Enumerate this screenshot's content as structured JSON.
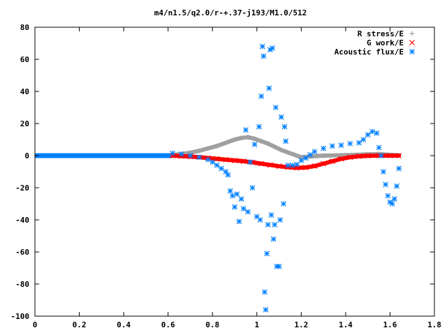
{
  "chart_data": {
    "type": "scatter",
    "title": "m4/n1.5/q2.0/r-+.37-j193/M1.0/512",
    "xlabel": "",
    "ylabel": "",
    "xlim": [
      0,
      1.8
    ],
    "ylim": [
      -100,
      80
    ],
    "x_ticks": [
      "0",
      "0.2",
      "0.4",
      "0.6",
      "0.8",
      "1",
      "1.2",
      "1.4",
      "1.6",
      "1.8"
    ],
    "y_ticks": [
      "80",
      "60",
      "40",
      "20",
      "0",
      "-20",
      "-40",
      "-60",
      "-80",
      "-100"
    ],
    "x_tick_values": [
      0,
      0.2,
      0.4,
      0.6,
      0.8,
      1.0,
      1.2,
      1.4,
      1.6,
      1.8
    ],
    "y_tick_values": [
      80,
      60,
      40,
      20,
      0,
      -20,
      -40,
      -60,
      -80,
      -100
    ],
    "grid": false,
    "legend_position": "top-right",
    "series": [
      {
        "name": "R stress/E",
        "marker": "plus",
        "color": "#a0a0a0",
        "points": [
          [
            0.62,
            0.5
          ],
          [
            0.66,
            1.0
          ],
          [
            0.7,
            1.8
          ],
          [
            0.74,
            3.0
          ],
          [
            0.78,
            4.5
          ],
          [
            0.82,
            6.0
          ],
          [
            0.86,
            8.0
          ],
          [
            0.9,
            10.0
          ],
          [
            0.93,
            11.0
          ],
          [
            0.96,
            11.5
          ],
          [
            0.99,
            10.5
          ],
          [
            1.02,
            9.0
          ],
          [
            1.05,
            7.5
          ],
          [
            1.08,
            5.5
          ],
          [
            1.11,
            3.5
          ],
          [
            1.14,
            2.0
          ],
          [
            1.17,
            0.5
          ],
          [
            1.2,
            -1.0
          ],
          [
            1.24,
            -0.5
          ],
          [
            1.3,
            0.0
          ],
          [
            1.4,
            0.3
          ],
          [
            1.5,
            0.8
          ],
          [
            1.55,
            1.0
          ],
          [
            1.6,
            0.5
          ],
          [
            1.64,
            0.2
          ]
        ]
      },
      {
        "name": "G work/E",
        "marker": "cross",
        "color": "#ff0000",
        "points": [
          [
            0.62,
            0.0
          ],
          [
            0.66,
            -0.3
          ],
          [
            0.7,
            -0.6
          ],
          [
            0.74,
            -1.0
          ],
          [
            0.78,
            -1.5
          ],
          [
            0.82,
            -2.0
          ],
          [
            0.86,
            -2.5
          ],
          [
            0.9,
            -3.0
          ],
          [
            0.94,
            -3.5
          ],
          [
            0.98,
            -4.2
          ],
          [
            1.02,
            -5.0
          ],
          [
            1.06,
            -5.8
          ],
          [
            1.1,
            -6.6
          ],
          [
            1.14,
            -7.2
          ],
          [
            1.18,
            -7.6
          ],
          [
            1.22,
            -7.4
          ],
          [
            1.26,
            -6.5
          ],
          [
            1.3,
            -5.0
          ],
          [
            1.34,
            -3.5
          ],
          [
            1.38,
            -2.0
          ],
          [
            1.42,
            -1.0
          ],
          [
            1.46,
            -0.4
          ],
          [
            1.5,
            -0.1
          ],
          [
            1.55,
            0.0
          ],
          [
            1.6,
            0.0
          ],
          [
            1.64,
            0.0
          ]
        ]
      },
      {
        "name": "Acoustic flux/E",
        "marker": "star",
        "color": "#0080ff",
        "points": [
          [
            0.62,
            1.5
          ],
          [
            0.66,
            1.0
          ],
          [
            0.7,
            0.0
          ],
          [
            0.74,
            -1.0
          ],
          [
            0.78,
            -2.5
          ],
          [
            0.8,
            -4.0
          ],
          [
            0.82,
            -6.0
          ],
          [
            0.84,
            -8.0
          ],
          [
            0.86,
            -10.0
          ],
          [
            0.87,
            -12.0
          ],
          [
            0.88,
            -22.0
          ],
          [
            0.89,
            -25.0
          ],
          [
            0.9,
            -32.0
          ],
          [
            0.91,
            -24.0
          ],
          [
            0.92,
            -41.0
          ],
          [
            0.93,
            -27.0
          ],
          [
            0.94,
            -33.0
          ],
          [
            0.95,
            16.0
          ],
          [
            0.96,
            -35.0
          ],
          [
            0.97,
            -4.0
          ],
          [
            0.98,
            -20.0
          ],
          [
            0.99,
            7.0
          ],
          [
            1.0,
            -38.0
          ],
          [
            1.01,
            18.0
          ],
          [
            1.015,
            -40.0
          ],
          [
            1.02,
            37.0
          ],
          [
            1.025,
            68.0
          ],
          [
            1.03,
            62.0
          ],
          [
            1.035,
            -85.0
          ],
          [
            1.04,
            -96.0
          ],
          [
            1.045,
            -61.0
          ],
          [
            1.05,
            -43.0
          ],
          [
            1.055,
            42.0
          ],
          [
            1.06,
            66.0
          ],
          [
            1.065,
            -37.0
          ],
          [
            1.07,
            67.0
          ],
          [
            1.075,
            -52.0
          ],
          [
            1.08,
            -43.0
          ],
          [
            1.085,
            30.0
          ],
          [
            1.09,
            -69.0
          ],
          [
            1.1,
            -69.0
          ],
          [
            1.105,
            -40.0
          ],
          [
            1.11,
            24.0
          ],
          [
            1.12,
            -30.0
          ],
          [
            1.125,
            18.0
          ],
          [
            1.13,
            9.0
          ],
          [
            1.14,
            -6.0
          ],
          [
            1.16,
            -6.0
          ],
          [
            1.18,
            -5.5
          ],
          [
            1.2,
            -3.0
          ],
          [
            1.22,
            -1.5
          ],
          [
            1.24,
            0.5
          ],
          [
            1.26,
            2.5
          ],
          [
            1.3,
            4.5
          ],
          [
            1.34,
            6.0
          ],
          [
            1.38,
            6.5
          ],
          [
            1.42,
            7.5
          ],
          [
            1.46,
            8.0
          ],
          [
            1.48,
            10.0
          ],
          [
            1.5,
            13.0
          ],
          [
            1.52,
            15.0
          ],
          [
            1.54,
            14.0
          ],
          [
            1.55,
            5.0
          ],
          [
            1.56,
            0.0
          ],
          [
            1.57,
            -10.0
          ],
          [
            1.58,
            -18.0
          ],
          [
            1.59,
            -25.0
          ],
          [
            1.6,
            -29.0
          ],
          [
            1.61,
            -30.0
          ],
          [
            1.62,
            -27.0
          ],
          [
            1.63,
            -19.0
          ],
          [
            1.64,
            -8.0
          ]
        ]
      }
    ]
  }
}
